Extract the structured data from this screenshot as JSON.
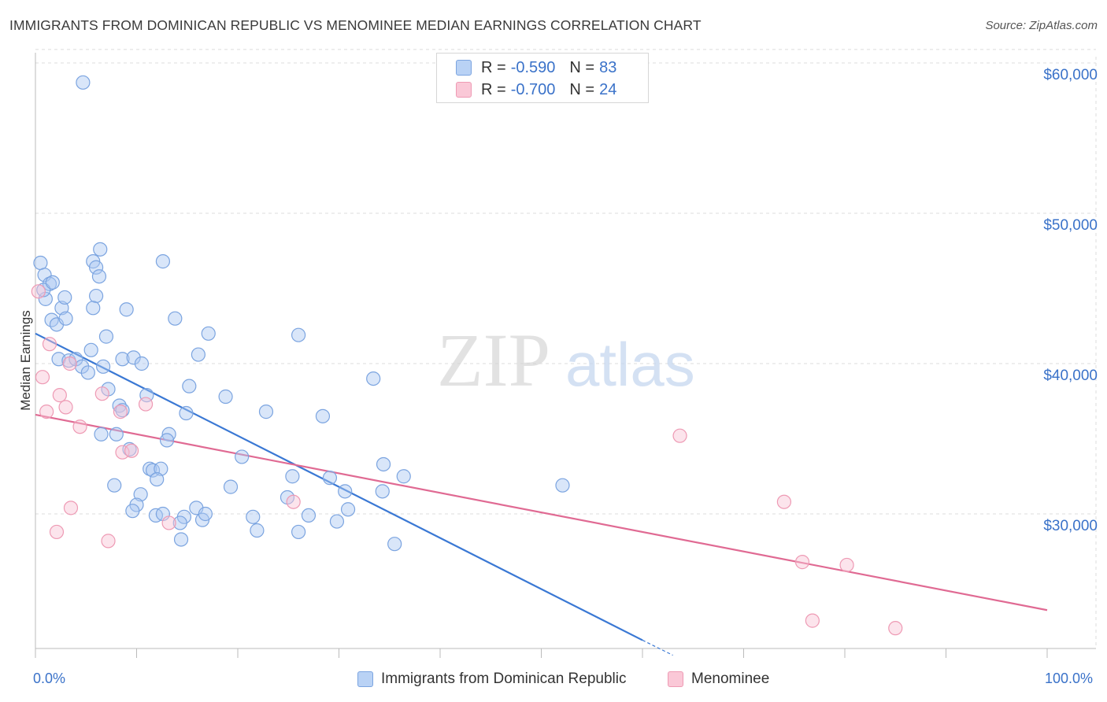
{
  "title": "IMMIGRANTS FROM DOMINICAN REPUBLIC VS MENOMINEE MEDIAN EARNINGS CORRELATION CHART",
  "source": "Source: ZipAtlas.com",
  "watermark": {
    "zip": "ZIP",
    "atlas": "atlas"
  },
  "legend_top": {
    "rows": [
      {
        "r_label": "R =",
        "r_value": "-0.590",
        "n_label": "N =",
        "n_value": "83",
        "color": "#7ba4e0"
      },
      {
        "r_label": "R =",
        "r_value": "-0.700",
        "n_label": "N =",
        "n_value": "24",
        "color": "#ee9ab4"
      }
    ]
  },
  "legend_bottom": [
    "Immigrants from Dominican Republic",
    "Menominee"
  ],
  "colors": {
    "blue": "#3a78d4",
    "pink": "#e06a93",
    "tick_text": "#3a72c9"
  },
  "chart_data": {
    "type": "scatter",
    "title": "IMMIGRANTS FROM DOMINICAN REPUBLIC VS MENOMINEE MEDIAN EARNINGS CORRELATION CHART",
    "xlabel": "",
    "ylabel": "Median Earnings",
    "xlim": [
      0,
      100
    ],
    "ylim": [
      20000,
      61000
    ],
    "x_tick_labels": [
      "0.0%",
      "100.0%"
    ],
    "y_ticks": [
      30000,
      40000,
      50000,
      60000
    ],
    "y_tick_labels": [
      "$30,000",
      "$40,000",
      "$50,000",
      "$60,000"
    ],
    "grid": true,
    "legend_position": "bottom",
    "series": [
      {
        "name": "Immigrants from Dominican Republic",
        "color": "#7ba4e0",
        "trend": {
          "x": [
            0,
            60
          ],
          "y": [
            42000,
            21600
          ],
          "dashed_to": [
            63,
            20600
          ]
        },
        "points": [
          [
            4.7,
            58700
          ],
          [
            0.5,
            46700
          ],
          [
            0.9,
            45900
          ],
          [
            1.4,
            45300
          ],
          [
            1.0,
            44300
          ],
          [
            2.6,
            43700
          ],
          [
            2.9,
            44400
          ],
          [
            5.7,
            46800
          ],
          [
            6.0,
            46400
          ],
          [
            6.4,
            47600
          ],
          [
            6.3,
            45800
          ],
          [
            6.0,
            44500
          ],
          [
            5.7,
            43700
          ],
          [
            1.6,
            42900
          ],
          [
            2.1,
            42600
          ],
          [
            3.0,
            43000
          ],
          [
            9.0,
            43600
          ],
          [
            12.6,
            46800
          ],
          [
            13.8,
            43000
          ],
          [
            7.0,
            41800
          ],
          [
            5.5,
            40900
          ],
          [
            2.3,
            40300
          ],
          [
            3.3,
            40200
          ],
          [
            4.0,
            40300
          ],
          [
            4.6,
            39800
          ],
          [
            5.2,
            39400
          ],
          [
            6.7,
            39800
          ],
          [
            8.6,
            40300
          ],
          [
            9.7,
            40400
          ],
          [
            10.5,
            40000
          ],
          [
            17.1,
            42000
          ],
          [
            16.1,
            40600
          ],
          [
            26.0,
            41900
          ],
          [
            33.4,
            39000
          ],
          [
            7.2,
            38300
          ],
          [
            11.0,
            37900
          ],
          [
            15.2,
            38500
          ],
          [
            18.8,
            37800
          ],
          [
            8.3,
            37200
          ],
          [
            8.6,
            36900
          ],
          [
            14.9,
            36700
          ],
          [
            22.8,
            36800
          ],
          [
            28.4,
            36500
          ],
          [
            6.5,
            35300
          ],
          [
            8.0,
            35300
          ],
          [
            13.2,
            35300
          ],
          [
            13.0,
            34900
          ],
          [
            9.3,
            34300
          ],
          [
            20.4,
            33800
          ],
          [
            34.4,
            33300
          ],
          [
            11.3,
            33000
          ],
          [
            11.6,
            32900
          ],
          [
            12.4,
            33000
          ],
          [
            12.0,
            32300
          ],
          [
            7.8,
            31900
          ],
          [
            19.3,
            31800
          ],
          [
            25.4,
            32500
          ],
          [
            29.1,
            32400
          ],
          [
            36.4,
            32500
          ],
          [
            52.1,
            31900
          ],
          [
            10.4,
            31300
          ],
          [
            10.0,
            30600
          ],
          [
            9.6,
            30200
          ],
          [
            24.9,
            31100
          ],
          [
            30.6,
            31500
          ],
          [
            30.9,
            30300
          ],
          [
            34.3,
            31500
          ],
          [
            11.9,
            29900
          ],
          [
            12.6,
            30000
          ],
          [
            14.7,
            29800
          ],
          [
            15.9,
            30400
          ],
          [
            16.5,
            29600
          ],
          [
            16.8,
            30000
          ],
          [
            21.5,
            29800
          ],
          [
            27.0,
            29900
          ],
          [
            29.8,
            29500
          ],
          [
            14.3,
            29400
          ],
          [
            21.9,
            28900
          ],
          [
            26.0,
            28800
          ],
          [
            14.4,
            28300
          ],
          [
            35.5,
            28000
          ],
          [
            0.8,
            44900
          ],
          [
            1.7,
            45400
          ]
        ]
      },
      {
        "name": "Menominee",
        "color": "#ee9ab4",
        "trend": {
          "x": [
            0,
            100
          ],
          "y": [
            36600,
            23600
          ]
        },
        "points": [
          [
            0.3,
            44800
          ],
          [
            1.4,
            41300
          ],
          [
            0.7,
            39100
          ],
          [
            3.4,
            40000
          ],
          [
            2.4,
            37900
          ],
          [
            6.6,
            38000
          ],
          [
            1.1,
            36800
          ],
          [
            3.0,
            37100
          ],
          [
            10.9,
            37300
          ],
          [
            8.4,
            36800
          ],
          [
            4.4,
            35800
          ],
          [
            63.7,
            35200
          ],
          [
            8.6,
            34100
          ],
          [
            9.5,
            34200
          ],
          [
            25.5,
            30800
          ],
          [
            3.5,
            30400
          ],
          [
            74.0,
            30800
          ],
          [
            13.2,
            29400
          ],
          [
            2.1,
            28800
          ],
          [
            7.2,
            28200
          ],
          [
            75.8,
            26800
          ],
          [
            80.2,
            26600
          ],
          [
            76.8,
            22900
          ],
          [
            85.0,
            22400
          ]
        ]
      }
    ]
  }
}
